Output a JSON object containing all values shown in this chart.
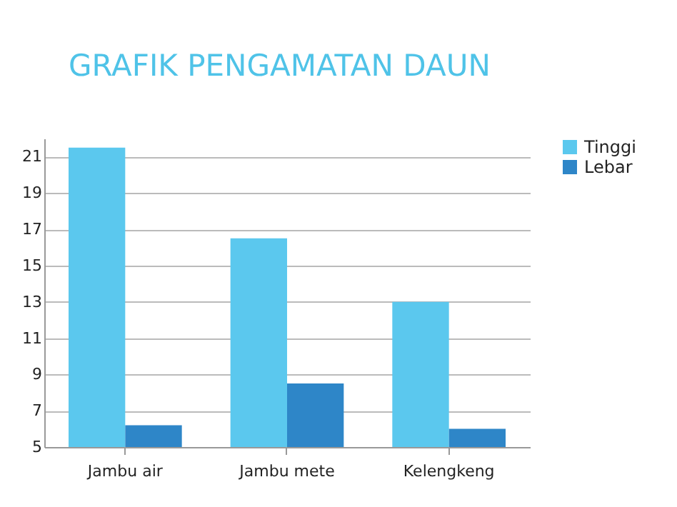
{
  "chart_data": {
    "type": "bar",
    "title": "GRAFIK PENGAMATAN DAUN",
    "categories": [
      "Jambu air",
      "Jambu mete",
      "Kelengkeng"
    ],
    "series": [
      {
        "name": "Tinggi",
        "color": "#5bc8ee",
        "values": [
          21.5,
          16.5,
          13
        ]
      },
      {
        "name": "Lebar",
        "color": "#2e86c8",
        "values": [
          6.2,
          8.5,
          6
        ]
      }
    ],
    "ylim": [
      5,
      22
    ],
    "yticks": [
      5,
      7,
      9,
      11,
      13,
      15,
      17,
      19,
      21
    ],
    "grid": "y",
    "legend": "right"
  }
}
